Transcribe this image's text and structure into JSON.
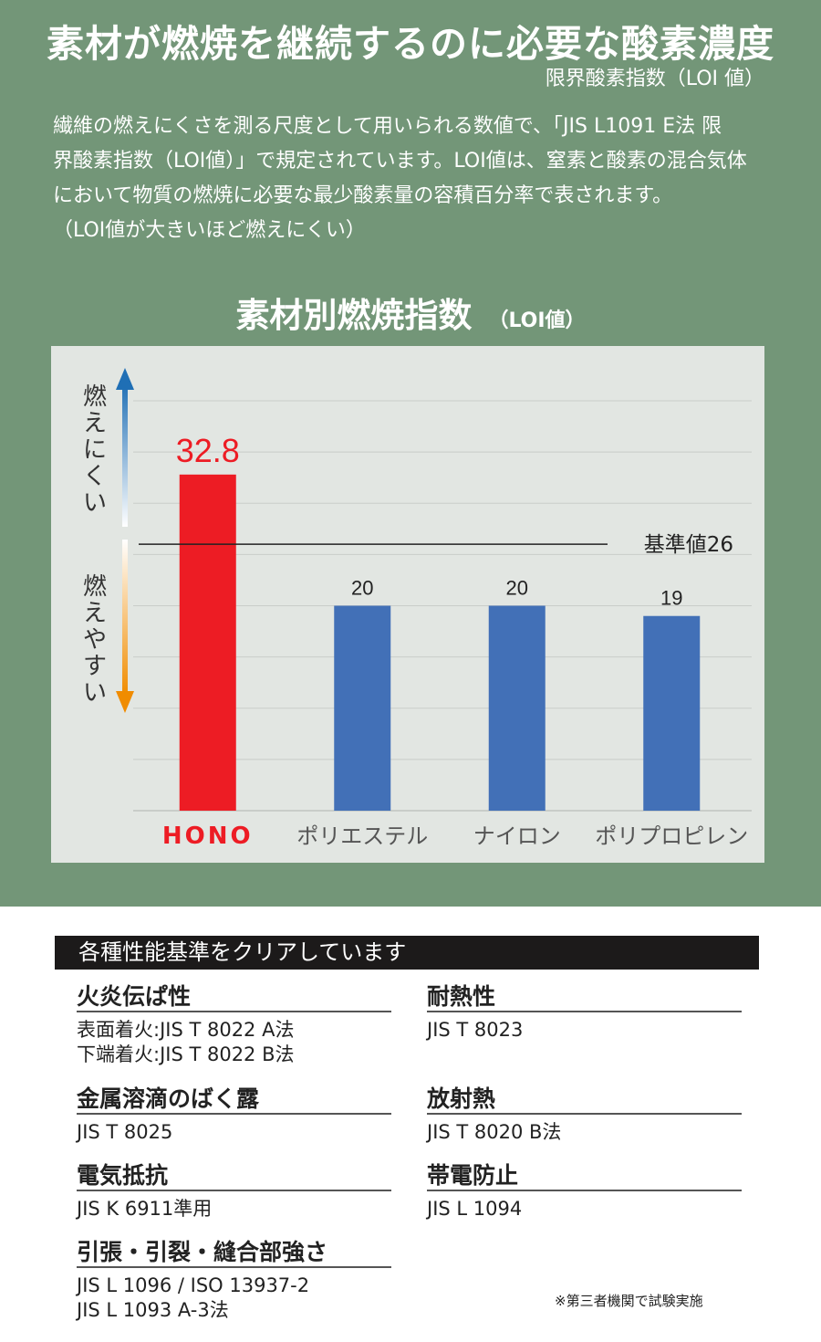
{
  "header": {
    "title": "素材が燃焼を継続するのに必要な酸素濃度",
    "subtitle": "限界酸素指数（LOI 値）"
  },
  "description": [
    "繊維の燃えにくさを測る尺度として用いられる数値で、「JIS L1091 E法 限",
    "界酸素指数（LOI値）」で規定されています。LOI値は、窒素と酸素の混合気体",
    "において物質の燃焼に必要な最少酸素量の容積百分率で表されます。",
    "（LOI値が大きいほど燃えにくい）"
  ],
  "chart_title": {
    "main": "素材別燃焼指数",
    "unit": "（LOI値）"
  },
  "chart_data": {
    "type": "bar",
    "title": "素材別燃焼指数（LOI値）",
    "categories": [
      "HONO",
      "ポリエステル",
      "ナイロン",
      "ポリプロピレン"
    ],
    "values": [
      32.8,
      20,
      20,
      19
    ],
    "data_labels": [
      "32.8",
      "20",
      "20",
      "19"
    ],
    "bar_colors": [
      "#ed1c24",
      "#4270b7",
      "#4270b7",
      "#4270b7"
    ],
    "ylim": [
      0,
      40
    ],
    "gridlines": [
      0,
      5,
      10,
      15,
      20,
      25,
      30,
      35,
      40
    ],
    "grid": true,
    "reference_line": {
      "value": 26,
      "label": "基準値26"
    },
    "axis_annotations": {
      "up": {
        "label": "燃えにくい",
        "color": "#1f6fb5"
      },
      "down": {
        "label": "燃えやすい",
        "color": "#f08c00"
      }
    }
  },
  "criteria": {
    "header": "各種性能基準をクリアしています",
    "items": [
      {
        "title": "火炎伝ぱ性",
        "standards": [
          "表面着火:JIS T 8022 A法",
          "下端着火:JIS T 8022 B法"
        ]
      },
      {
        "title": "耐熱性",
        "standards": [
          "JIS T 8023"
        ]
      },
      {
        "title": "金属溶滴のばく露",
        "standards": [
          "JIS T 8025"
        ]
      },
      {
        "title": "放射熱",
        "standards": [
          "JIS T 8020 B法"
        ]
      },
      {
        "title": "電気抵抗",
        "standards": [
          "JIS K 6911準用"
        ]
      },
      {
        "title": "帯電防止",
        "standards": [
          "JIS L 1094"
        ]
      },
      {
        "title": "引張・引裂・縫合部強さ",
        "standards": [
          "JIS L 1096 / ISO 13937-2",
          "JIS L 1093 A-3法"
        ]
      }
    ],
    "note": "※第三者機関で試験実施"
  },
  "colors": {
    "background_top": "#739678",
    "chart_background": "#e2e6e2",
    "highlight": "#ed1c24",
    "bar_blue": "#4270b7",
    "header_bar": "#1c1a1a"
  }
}
